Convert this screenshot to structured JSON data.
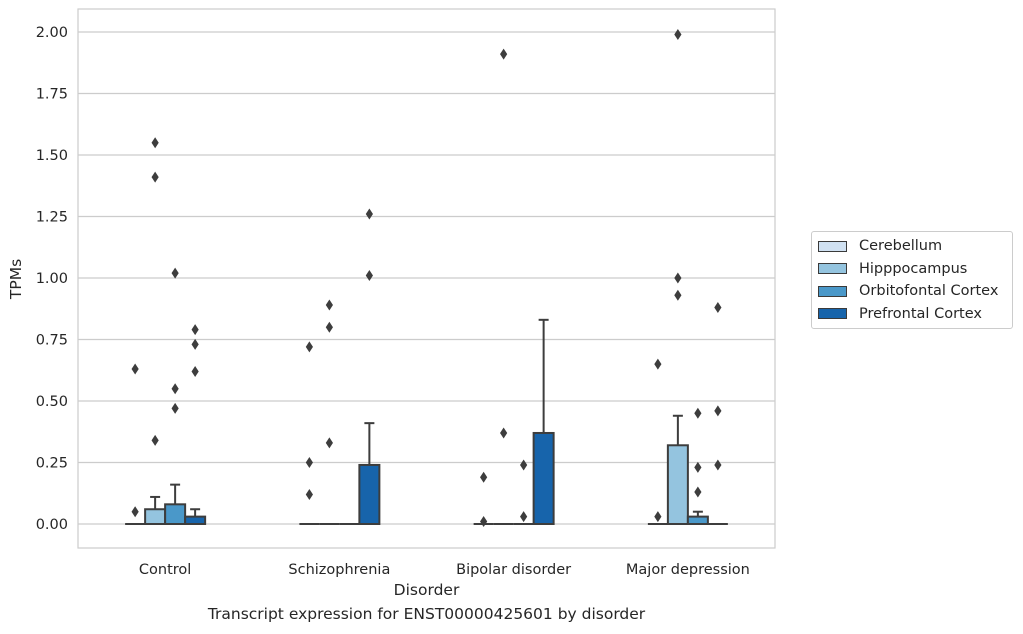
{
  "chart_data": {
    "type": "box",
    "caption": "Transcript expression for ENST00000425601 by disorder",
    "xlabel": "Disorder",
    "ylabel": "TPMs",
    "ylim": [
      -0.1,
      2.1
    ],
    "yticks": [
      "0.00",
      "0.25",
      "0.50",
      "0.75",
      "1.00",
      "1.25",
      "1.50",
      "1.75",
      "2.00"
    ],
    "ytick_values": [
      0,
      0.25,
      0.5,
      0.75,
      1.0,
      1.25,
      1.5,
      1.75,
      2.0
    ],
    "grid": true,
    "legend_position": "right",
    "categories": [
      "Control",
      "Schizophrenia",
      "Bipolar disorder",
      "Major depression"
    ],
    "series": [
      {
        "name": "Cerebellum",
        "color": "#d0e1f2",
        "boxes": [
          {
            "q1": 0,
            "median": 0,
            "q3": 0,
            "whisker_low": 0,
            "whisker_high": 0,
            "outliers": [
              0.05,
              0.63
            ]
          },
          {
            "q1": 0,
            "median": 0,
            "q3": 0,
            "whisker_low": 0,
            "whisker_high": 0,
            "outliers": [
              0.12,
              0.25,
              0.72
            ]
          },
          {
            "q1": 0,
            "median": 0,
            "q3": 0,
            "whisker_low": 0,
            "whisker_high": 0,
            "outliers": [
              0.01,
              0.19
            ]
          },
          {
            "q1": 0,
            "median": 0,
            "q3": 0,
            "whisker_low": 0,
            "whisker_high": 0,
            "outliers": [
              0.03,
              0.65
            ]
          }
        ]
      },
      {
        "name": "Hipppocampus",
        "color": "#94c4df",
        "boxes": [
          {
            "q1": 0,
            "median": 0,
            "q3": 0.06,
            "whisker_low": 0,
            "whisker_high": 0.11,
            "outliers": [
              0.34,
              1.41,
              1.55
            ]
          },
          {
            "q1": 0,
            "median": 0,
            "q3": 0,
            "whisker_low": 0,
            "whisker_high": 0,
            "outliers": [
              0.33,
              0.8,
              0.89
            ]
          },
          {
            "q1": 0,
            "median": 0,
            "q3": 0,
            "whisker_low": 0,
            "whisker_high": 0,
            "outliers": [
              0.37,
              1.91
            ]
          },
          {
            "q1": 0,
            "median": 0,
            "q3": 0.32,
            "whisker_low": 0,
            "whisker_high": 0.44,
            "outliers": [
              0.93,
              1.0,
              1.99
            ]
          }
        ]
      },
      {
        "name": "Orbitofontal Cortex",
        "color": "#4a98c9",
        "boxes": [
          {
            "q1": 0,
            "median": 0,
            "q3": 0.08,
            "whisker_low": 0,
            "whisker_high": 0.16,
            "outliers": [
              0.47,
              0.55,
              1.02
            ]
          },
          {
            "q1": 0,
            "median": 0,
            "q3": 0,
            "whisker_low": 0,
            "whisker_high": 0,
            "outliers": []
          },
          {
            "q1": 0,
            "median": 0,
            "q3": 0,
            "whisker_low": 0,
            "whisker_high": 0,
            "outliers": [
              0.03,
              0.24
            ]
          },
          {
            "q1": 0,
            "median": 0,
            "q3": 0.03,
            "whisker_low": 0,
            "whisker_high": 0.05,
            "outliers": [
              0.13,
              0.23,
              0.45
            ]
          }
        ]
      },
      {
        "name": "Prefrontal Cortex",
        "color": "#1764ab",
        "boxes": [
          {
            "q1": 0,
            "median": 0,
            "q3": 0.03,
            "whisker_low": 0,
            "whisker_high": 0.06,
            "outliers": [
              0.62,
              0.73,
              0.79
            ]
          },
          {
            "q1": 0,
            "median": 0,
            "q3": 0.24,
            "whisker_low": 0,
            "whisker_high": 0.41,
            "outliers": [
              1.01,
              1.26
            ]
          },
          {
            "q1": 0,
            "median": 0,
            "q3": 0.37,
            "whisker_low": 0,
            "whisker_high": 0.83,
            "outliers": []
          },
          {
            "q1": 0,
            "median": 0,
            "q3": 0,
            "whisker_low": 0,
            "whisker_high": 0,
            "outliers": [
              0.24,
              0.46,
              0.88
            ]
          }
        ]
      }
    ]
  }
}
